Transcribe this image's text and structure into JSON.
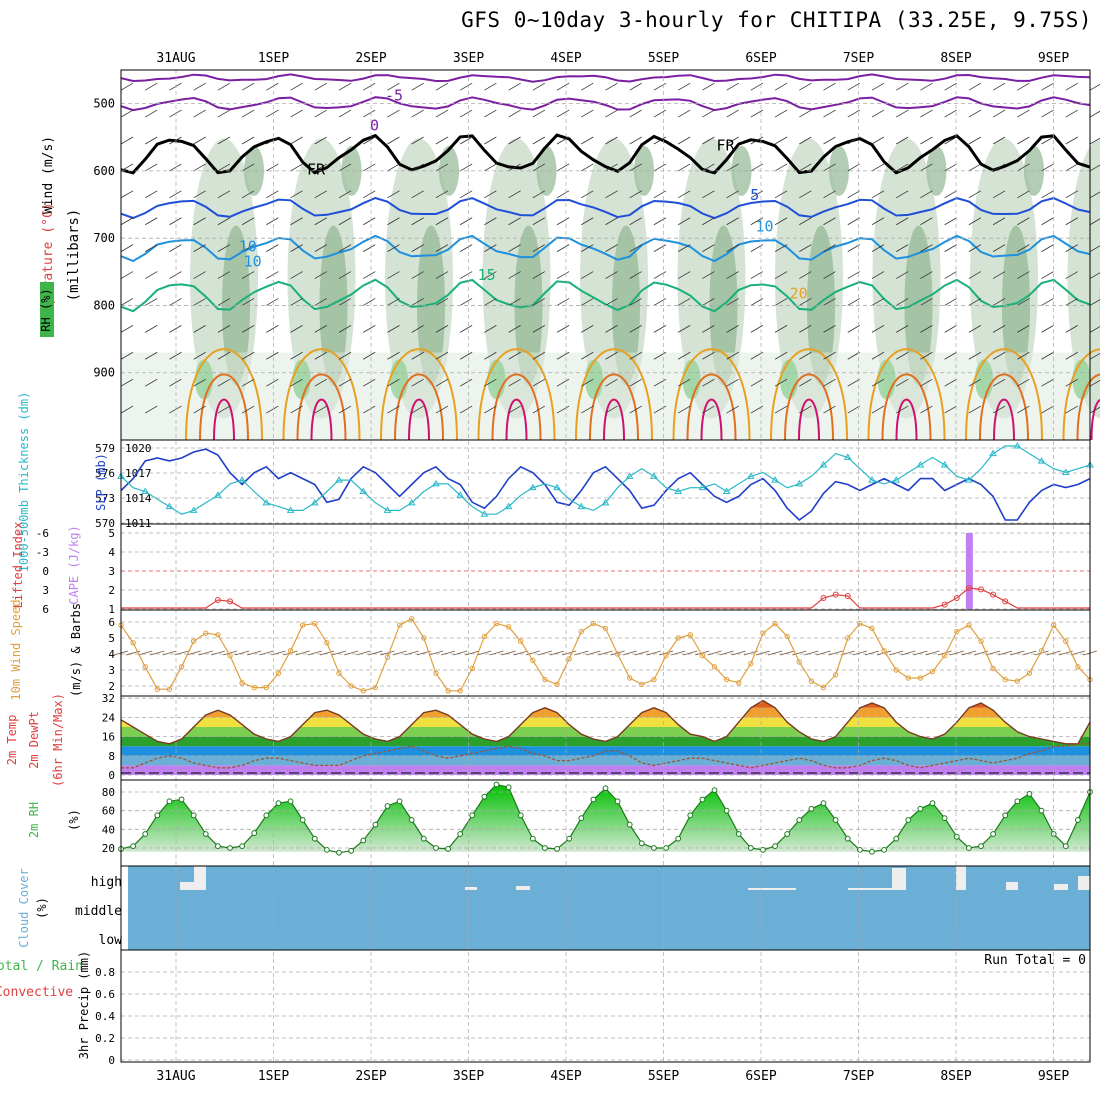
{
  "title": "GFS 0~10day 3-hourly for CHITIPA (33.25E, 9.75S)",
  "colors": {
    "rh": "#3fb44a",
    "temp_neg": "#7b1fa2",
    "temp_zero": "#000000",
    "temp_5": "#1f4fd8",
    "temp_10": "#1e90e0",
    "temp_15": "#19b07a",
    "temp_20": "#e8a020",
    "temp_25": "#e07020",
    "temp_30": "#d0106f",
    "slp": "#1f3fc8",
    "thickness": "#2ab8c8",
    "cape": "#c080f0",
    "lifted": "#e04040",
    "wind": "#e0a040",
    "cloud": "#6baed6",
    "grid": "#aaaaaa"
  },
  "chart_data": {
    "type": "meteogram",
    "days": [
      "31AUG",
      "1SEP",
      "2SEP",
      "3SEP",
      "4SEP",
      "5SEP",
      "6SEP",
      "7SEP",
      "8SEP",
      "9SEP"
    ],
    "n_steps": 81,
    "panels": {
      "upper": {
        "ylabel": "(millibars)",
        "side_labels": [
          "Wind (m/s)",
          "Temperature (°C)",
          "RH (%)"
        ],
        "ylim": [
          1000,
          450
        ],
        "ticks": [
          500,
          600,
          700,
          800,
          900
        ],
        "tick_labels": [
          "500",
          "600",
          "700",
          "800",
          "900"
        ],
        "isotherm_labels": [
          {
            "text": "-5",
            "color": "temp_neg",
            "x_day": 2.8,
            "p": 495
          },
          {
            "text": "0",
            "color": "temp_neg",
            "x_day": 2.6,
            "p": 540
          },
          {
            "text": "FR",
            "color": "temp_zero",
            "x_day": 2.0,
            "p": 605
          },
          {
            "text": "FR",
            "color": "temp_zero",
            "x_day": 6.2,
            "p": 570
          },
          {
            "text": "5",
            "color": "temp_5",
            "x_day": 6.5,
            "p": 643
          },
          {
            "text": "10",
            "color": "temp_10",
            "x_day": 1.3,
            "p": 720
          },
          {
            "text": "10",
            "color": "temp_10",
            "x_day": 1.35,
            "p": 742
          },
          {
            "text": "10",
            "color": "temp_10",
            "x_day": 6.6,
            "p": 690
          },
          {
            "text": "15",
            "color": "temp_15",
            "x_day": 3.75,
            "p": 762
          },
          {
            "text": "20",
            "color": "temp_20",
            "x_day": 6.95,
            "p": 790
          }
        ]
      },
      "slp": {
        "left_ticks": [
          "579",
          "576",
          "573",
          "570"
        ],
        "right_ticks": [
          "1020",
          "1017",
          "1014",
          "1011"
        ],
        "side_labels": [
          "1000-500mb Thickness (dm)",
          "SLP (mb)"
        ],
        "slp_mb": [
          1015,
          1017,
          1020,
          1020.5,
          1020,
          1020.5,
          1021.5,
          1022,
          1021,
          1018,
          1016,
          1018,
          1019,
          1017,
          1018,
          1017,
          1016,
          1013,
          1013.5,
          1017,
          1019,
          1018,
          1016,
          1014,
          1016,
          1018,
          1019,
          1017,
          1016,
          1013,
          1012,
          1014,
          1017,
          1019,
          1018,
          1016,
          1013,
          1012.5,
          1015,
          1018,
          1019,
          1017,
          1015,
          1012,
          1012.5,
          1015,
          1017,
          1018,
          1016,
          1014,
          1013,
          1014,
          1016,
          1017,
          1015,
          1012,
          1010,
          1011.5,
          1014.5,
          1016.5,
          1016,
          1015,
          1016,
          1017,
          1016,
          1015,
          1017,
          1017,
          1015,
          1016,
          1017,
          1016,
          1014,
          1010,
          1010,
          1013,
          1015,
          1016,
          1015.5,
          1016,
          1017
        ],
        "thickness_dm": [
          575.5,
          574,
          573.5,
          572.5,
          571.5,
          570.5,
          571,
          572,
          573,
          574.5,
          575,
          573.5,
          572,
          571.5,
          571,
          571,
          572,
          573.5,
          575,
          575,
          573.5,
          572,
          571,
          571,
          572,
          573.5,
          574.5,
          574.5,
          573,
          571.5,
          570.5,
          570.5,
          571.5,
          573,
          574,
          574.5,
          574,
          572.5,
          571.5,
          571,
          572,
          574,
          575.5,
          576.5,
          575.5,
          574,
          573.5,
          574,
          574,
          574.5,
          573.5,
          574.5,
          575.5,
          576,
          575,
          574,
          574.5,
          575.5,
          577,
          578.5,
          578,
          576.5,
          575,
          574.5,
          575,
          576,
          577,
          578,
          577,
          575.5,
          575,
          576.5,
          578.5,
          579.5,
          579.5,
          578.5,
          577.5,
          576.5,
          576,
          576.5,
          577
        ]
      },
      "cape": {
        "left_ticks": [
          "-6",
          "-3",
          "0",
          "3",
          "6"
        ],
        "right_ticks": [
          "5",
          "4",
          "3",
          "2",
          "1"
        ],
        "side_labels": [
          "Lifted Index",
          "CAPE (J/kg)"
        ],
        "cape_bar": {
          "step": 70,
          "value": 5
        },
        "lifted_index": [
          6,
          6,
          6,
          6,
          6,
          6,
          6,
          6,
          4.8,
          5.0,
          6,
          6,
          6,
          6,
          6,
          6,
          6,
          6,
          6,
          6,
          6,
          6,
          6,
          6,
          6,
          6,
          6,
          6,
          6,
          6,
          6,
          6,
          6,
          6,
          6,
          6,
          6,
          6,
          6,
          6,
          6,
          6,
          6,
          6,
          6,
          6,
          6,
          6,
          6,
          6,
          6,
          6,
          6,
          6,
          6,
          6,
          6,
          6,
          4.5,
          4.0,
          4.2,
          6,
          6,
          6,
          6,
          6,
          6,
          6,
          5.5,
          4.5,
          3.0,
          3.2,
          4.0,
          5.0,
          6,
          6,
          6,
          6,
          6,
          6,
          6
        ]
      },
      "wind10m": {
        "ticks": [
          "6",
          "5",
          "4",
          "3",
          "2"
        ],
        "side_labels": [
          "10m Wind Speed",
          "(m/s) & Barbs"
        ],
        "speed": [
          5.8,
          4.7,
          3.2,
          1.8,
          1.8,
          3.2,
          4.8,
          5.3,
          5.2,
          3.9,
          2.2,
          1.9,
          1.9,
          2.8,
          4.2,
          5.8,
          5.9,
          4.7,
          2.8,
          2.0,
          1.7,
          1.9,
          3.8,
          5.8,
          6.2,
          5.0,
          2.8,
          1.7,
          1.7,
          3.1,
          5.1,
          5.9,
          5.7,
          4.8,
          3.6,
          2.4,
          2.1,
          3.7,
          5.4,
          5.9,
          5.6,
          4.0,
          2.5,
          2.1,
          2.4,
          3.9,
          5.0,
          5.2,
          3.9,
          3.2,
          2.4,
          2.2,
          3.4,
          5.3,
          5.9,
          5.1,
          3.5,
          2.3,
          1.9,
          2.7,
          5.0,
          5.9,
          5.6,
          4.2,
          3.0,
          2.5,
          2.5,
          2.9,
          3.9,
          5.4,
          5.8,
          4.8,
          3.1,
          2.4,
          2.3,
          2.8,
          4.2,
          5.8,
          4.8,
          3.2,
          2.4
        ]
      },
      "temp2m": {
        "ticks": [
          "32",
          "24",
          "16",
          "8",
          "0"
        ],
        "side_labels": [
          "2m Temp",
          "2m DewPt",
          "(6hr Min/Max)"
        ],
        "temp": [
          23,
          20,
          17,
          14,
          13,
          15,
          20,
          25,
          27,
          25,
          21,
          17,
          15,
          14,
          16,
          21,
          26,
          27,
          25,
          21,
          17,
          15,
          14,
          16,
          21,
          26,
          27,
          25,
          21,
          17,
          15,
          14,
          16,
          21,
          26,
          28,
          26,
          21,
          17,
          15,
          14,
          16,
          21,
          26,
          28,
          26,
          21,
          17,
          16,
          14,
          16,
          22,
          28,
          31,
          28,
          22,
          18,
          15,
          14,
          16,
          22,
          28,
          30,
          28,
          22,
          18,
          16,
          15,
          17,
          22,
          28,
          30,
          27,
          22,
          18,
          16,
          15,
          14,
          13,
          13,
          22
        ],
        "dewpt": [
          3,
          3,
          5,
          7,
          8,
          7,
          5,
          4,
          3,
          3,
          4,
          6,
          7,
          7,
          6,
          5,
          4,
          4,
          4,
          6,
          8,
          9,
          10,
          11,
          12,
          10,
          8,
          7,
          8,
          9,
          10,
          11,
          12,
          11,
          9,
          8,
          6,
          6,
          7,
          8,
          10,
          10,
          8,
          5,
          4,
          5,
          6,
          7,
          7,
          6,
          5,
          4,
          3,
          4,
          5,
          6,
          7,
          6,
          4,
          3,
          3,
          4,
          6,
          7,
          6,
          4,
          3,
          4,
          5,
          6,
          7,
          6,
          5,
          6,
          7,
          9,
          10,
          12,
          12,
          13,
          13
        ]
      },
      "rh2m": {
        "ticks": [
          "80",
          "60",
          "40",
          "20"
        ],
        "side_labels": [
          "2m RH",
          "(%)"
        ],
        "rh": [
          19,
          22,
          35,
          55,
          70,
          72,
          55,
          35,
          22,
          20,
          22,
          36,
          55,
          68,
          70,
          50,
          30,
          18,
          15,
          17,
          28,
          45,
          65,
          70,
          50,
          30,
          20,
          19,
          35,
          55,
          75,
          88,
          85,
          55,
          30,
          20,
          19,
          30,
          52,
          72,
          84,
          70,
          45,
          25,
          20,
          20,
          30,
          55,
          72,
          82,
          60,
          35,
          20,
          18,
          22,
          35,
          50,
          62,
          68,
          50,
          30,
          18,
          16,
          18,
          30,
          50,
          62,
          68,
          52,
          32,
          20,
          22,
          35,
          55,
          70,
          78,
          60,
          35,
          22,
          50,
          80
        ]
      },
      "cloud": {
        "tick_labels": [
          "high",
          "middle",
          "low"
        ],
        "side_labels": [
          "Cloud Cover",
          "(%)"
        ]
      },
      "precip": {
        "ylim": [
          0,
          1
        ],
        "ticks": [
          "0.8",
          "0.6",
          "0.4",
          "0.2",
          "0"
        ],
        "side_labels": [
          "Total / Rain",
          "Convective",
          "3hr Precip (mm)"
        ],
        "run_total": "Run Total = 0",
        "values": []
      }
    }
  }
}
